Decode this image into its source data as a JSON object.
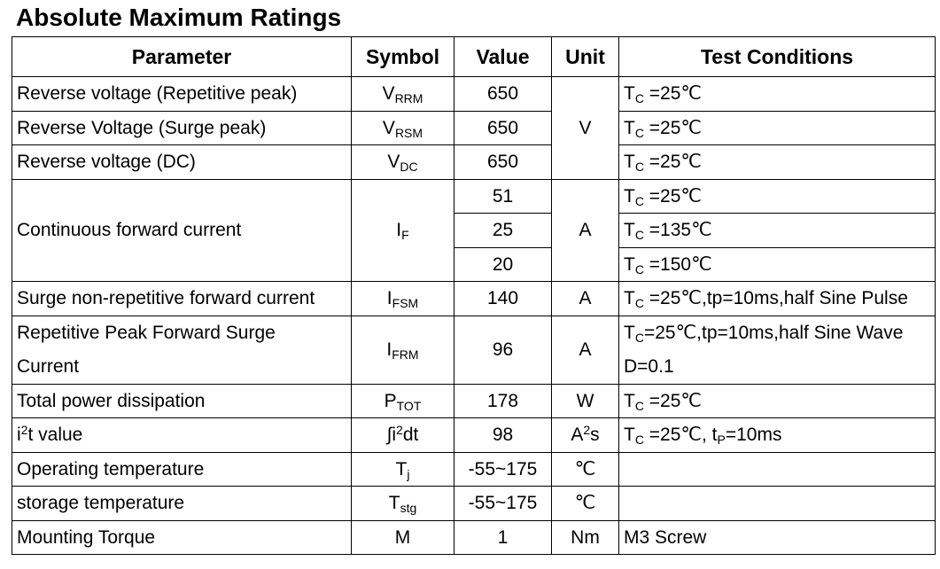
{
  "title": "Absolute Maximum Ratings",
  "headers": {
    "parameter": "Parameter",
    "symbol": "Symbol",
    "value": "Value",
    "unit": "Unit",
    "conditions": "Test Conditions"
  },
  "rows": {
    "vrrm": {
      "parameter": "Reverse voltage (Repetitive peak)",
      "symbol_main": "V",
      "symbol_sub": "RRM",
      "value": "650",
      "cond_main": "T",
      "cond_sub": "C",
      "cond_rest": " =25℃"
    },
    "vrsm": {
      "parameter": "Reverse Voltage (Surge peak)",
      "symbol_main": "V",
      "symbol_sub": "RSM",
      "value": "650",
      "cond_main": "T",
      "cond_sub": "C",
      "cond_rest": " =25℃"
    },
    "vdc": {
      "parameter": "Reverse voltage (DC)",
      "symbol_main": "V",
      "symbol_sub": "DC",
      "value": "650",
      "cond_main": "T",
      "cond_sub": "C",
      "cond_rest": " =25℃"
    },
    "voltage_unit": "V",
    "if": {
      "parameter": "Continuous forward current",
      "symbol_main": "I",
      "symbol_sub": "F",
      "unit": "A",
      "values": [
        "51",
        "25",
        "20"
      ],
      "cond_main": "T",
      "cond_sub": "C",
      "cond_rests": [
        " =25℃",
        " =135℃",
        " =150℃"
      ]
    },
    "ifsm": {
      "parameter": "Surge non-repetitive forward current",
      "symbol_main": "I",
      "symbol_sub": "FSM",
      "value": "140",
      "unit": "A",
      "cond_main": "T",
      "cond_sub": "C",
      "cond_rest": " =25℃,tp=10ms,half Sine Pulse"
    },
    "ifrm": {
      "parameter_line1": "Repetitive Peak Forward Surge",
      "parameter_line2": "Current",
      "symbol_main": "I",
      "symbol_sub": "FRM",
      "value": "96",
      "unit": "A",
      "cond_main": "T",
      "cond_sub": "C",
      "cond_rest": "=25℃,tp=10ms,half Sine Wave",
      "cond_line2": "D=0.1"
    },
    "ptot": {
      "parameter": "Total power dissipation",
      "symbol_main": "P",
      "symbol_sub": "TOT",
      "value": "178",
      "unit": "W",
      "cond_main": "T",
      "cond_sub": "C",
      "cond_rest": " =25℃"
    },
    "i2t": {
      "parameter_a": "i",
      "parameter_sup": "2",
      "parameter_b": "t value",
      "symbol_a": "∫i",
      "symbol_sup": "2",
      "symbol_b": "dt",
      "value": "98",
      "unit_a": "A",
      "unit_sup": "2",
      "unit_b": "s",
      "cond_main": "T",
      "cond_sub": "C",
      "cond_mid": " =25℃, t",
      "cond_sub2": "P",
      "cond_end": "=10ms"
    },
    "tj": {
      "parameter": "Operating temperature",
      "symbol_main": "T",
      "symbol_sub": "j",
      "value": "-55~175",
      "unit": "℃"
    },
    "tstg": {
      "parameter": "storage temperature",
      "symbol_main": "T",
      "symbol_sub": "stg",
      "value": "-55~175",
      "unit": "℃"
    },
    "m": {
      "parameter": "Mounting Torque",
      "symbol": "M",
      "value": "1",
      "unit": "Nm",
      "cond": "M3 Screw"
    }
  }
}
